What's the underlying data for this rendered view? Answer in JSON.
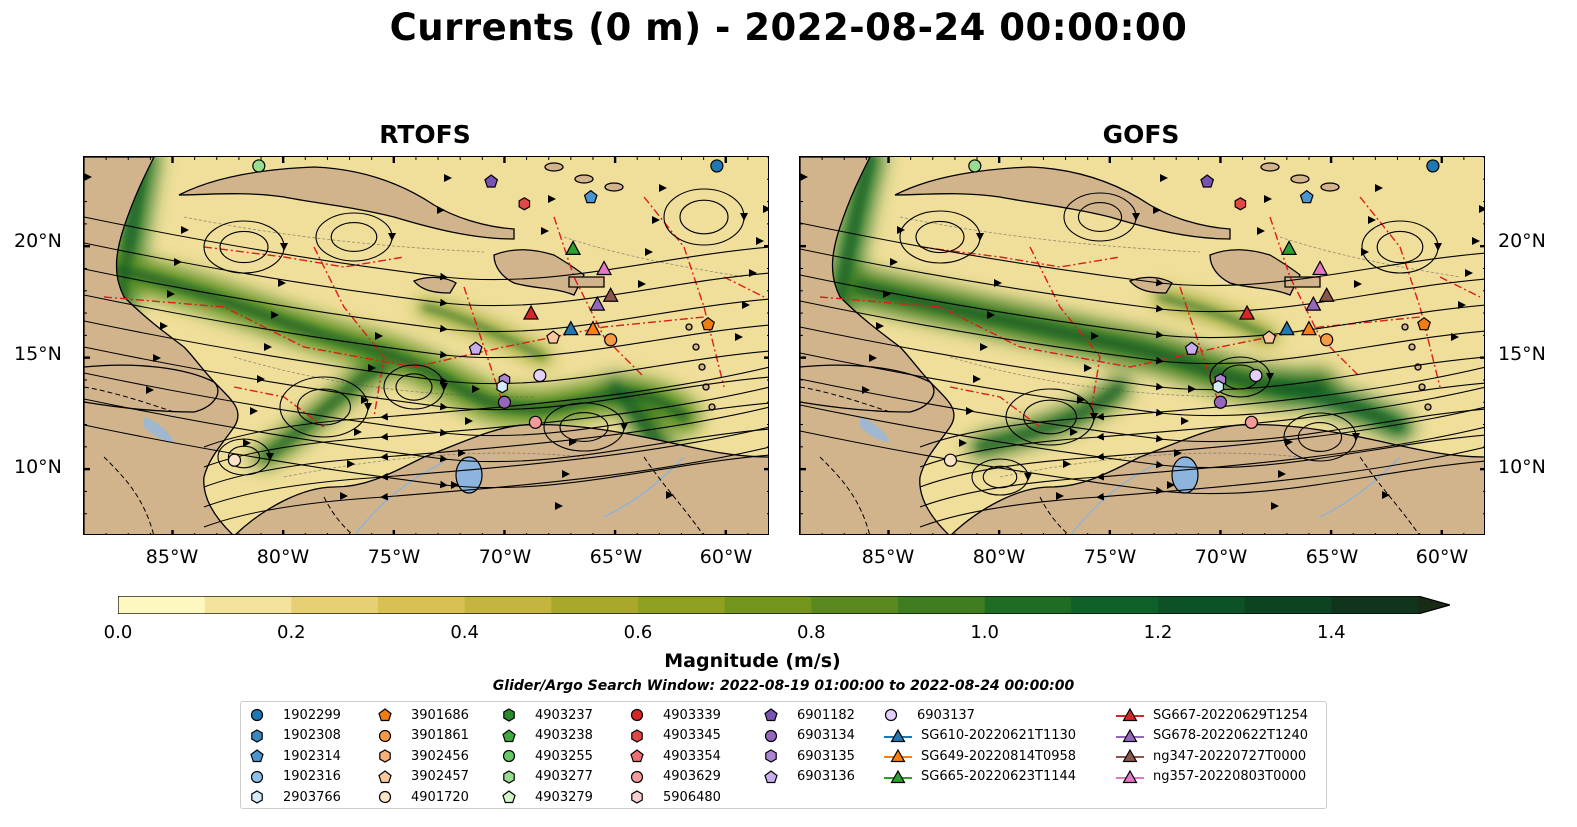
{
  "title": "Currents (0 m) - 2022-08-24 00:00:00",
  "panels": {
    "left": {
      "title": "RTOFS"
    },
    "right": {
      "title": "GOFS"
    }
  },
  "axes": {
    "x_ticks": [
      "85°W",
      "80°W",
      "75°W",
      "70°W",
      "65°W",
      "60°W"
    ],
    "y_ticks": [
      "20°N",
      "15°N",
      "10°N"
    ],
    "lon_range": [
      -89.0,
      -58.0
    ],
    "lat_range": [
      7.0,
      24.0
    ]
  },
  "colorbar": {
    "label": "Magnitude (m/s)",
    "ticks": [
      "0.0",
      "0.2",
      "0.4",
      "0.6",
      "0.8",
      "1.0",
      "1.2",
      "1.4"
    ],
    "range": [
      0.0,
      1.5
    ],
    "extend": "max",
    "colors": [
      "#fdf8c0",
      "#f4e39a",
      "#e6cf74",
      "#d8c054",
      "#c4b440",
      "#aaa82c",
      "#8fa022",
      "#73951e",
      "#5a8a1e",
      "#3f7d20",
      "#1f6d25",
      "#0f6028",
      "#0c5226",
      "#0c4422",
      "#10351c",
      "#192a17"
    ]
  },
  "search_window": "Glider/Argo Search Window: 2022-08-19 01:00:00 to 2022-08-24 00:00:00",
  "legend": {
    "columns": [
      [
        {
          "label": "1902299",
          "marker": "circle",
          "color": "#1f77b4"
        },
        {
          "label": "1902308",
          "marker": "hexagon",
          "color": "#3a86bf"
        },
        {
          "label": "1902314",
          "marker": "pentagon",
          "color": "#4a95d0"
        },
        {
          "label": "1902316",
          "marker": "circle",
          "color": "#8cc2ea"
        },
        {
          "label": "2903766",
          "marker": "hexagon",
          "color": "#d4ebfa"
        }
      ],
      [
        {
          "label": "3901686",
          "marker": "pentagon",
          "color": "#f07d10"
        },
        {
          "label": "3901861",
          "marker": "circle",
          "color": "#f59a45"
        },
        {
          "label": "3902456",
          "marker": "hexagon",
          "color": "#f8b27a"
        },
        {
          "label": "3902457",
          "marker": "pentagon",
          "color": "#fbc99f"
        },
        {
          "label": "4901720",
          "marker": "circle",
          "color": "#fde4c8"
        }
      ],
      [
        {
          "label": "4903237",
          "marker": "hexagon",
          "color": "#2a8a2a"
        },
        {
          "label": "4903238",
          "marker": "pentagon",
          "color": "#3fa83f"
        },
        {
          "label": "4903255",
          "marker": "circle",
          "color": "#66c766"
        },
        {
          "label": "4903277",
          "marker": "hexagon",
          "color": "#98dd8f"
        },
        {
          "label": "4903279",
          "marker": "pentagon",
          "color": "#d3f5c8"
        }
      ],
      [
        {
          "label": "4903339",
          "marker": "circle",
          "color": "#d62728"
        },
        {
          "label": "4903345",
          "marker": "hexagon",
          "color": "#e04848"
        },
        {
          "label": "4903354",
          "marker": "pentagon",
          "color": "#ec7070"
        },
        {
          "label": "4903629",
          "marker": "circle",
          "color": "#f49a9a"
        },
        {
          "label": "5906480",
          "marker": "hexagon",
          "color": "#fbd0d0"
        }
      ],
      [
        {
          "label": "6901182",
          "marker": "pentagon",
          "color": "#7a52b0"
        },
        {
          "label": "6903134",
          "marker": "circle",
          "color": "#9467bd"
        },
        {
          "label": "6903135",
          "marker": "hexagon",
          "color": "#ad86d2"
        },
        {
          "label": "6903136",
          "marker": "pentagon",
          "color": "#c9adee"
        }
      ],
      [
        {
          "label": "6903137",
          "marker": "circle",
          "color": "#e4d0fa"
        },
        {
          "label": "SG610-20220621T1130",
          "marker": "triangle-line",
          "color": "#1f77b4"
        },
        {
          "label": "SG649-20220814T0958",
          "marker": "triangle-line",
          "color": "#ff7f0e"
        },
        {
          "label": "SG665-20220623T1144",
          "marker": "triangle-line",
          "color": "#2ca02c"
        }
      ],
      [
        {
          "label": "SG667-20220629T1254",
          "marker": "triangle-line",
          "color": "#d62728"
        },
        {
          "label": "SG678-20220622T1240",
          "marker": "triangle-line",
          "color": "#9467bd"
        },
        {
          "label": "ng347-20220727T0000",
          "marker": "triangle-line",
          "color": "#8c564b"
        },
        {
          "label": "ng357-20220803T0000",
          "marker": "triangle-line",
          "color": "#e377c2"
        }
      ]
    ]
  }
}
